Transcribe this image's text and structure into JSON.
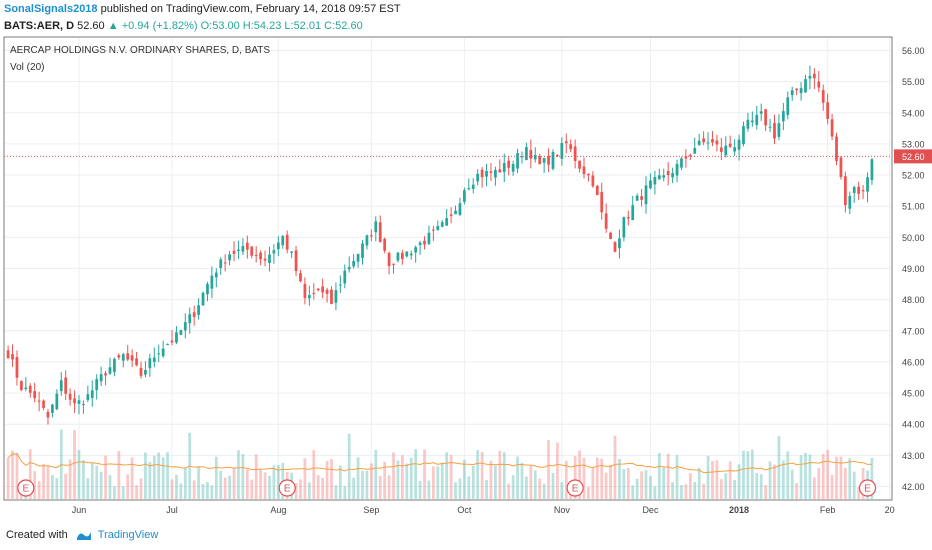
{
  "header": {
    "author": "SonalSignals2018",
    "published": "published on TradingView.com, February 14, 2018 09:57 EST",
    "symbol": "BATS:AER, D",
    "last": "52.60",
    "change": "+0.94 (+1.82%)",
    "o": "O:53.00",
    "h": "H:54.23",
    "l": "L:52.01",
    "c": "C:52.60"
  },
  "footer": {
    "created": "Created with",
    "brand": "TradingView"
  },
  "colors": {
    "up": "#26a69a",
    "down": "#ef5350",
    "ma": "#f5a040",
    "priceLine": "#e05050"
  },
  "chart_data": {
    "type": "candlestick",
    "title": "AERCAP HOLDINGS N.V. ORDINARY SHARES, D, BATS",
    "subtitle": "Vol (20)",
    "current_price": 52.6,
    "ylim": [
      41.6,
      56.4
    ],
    "y_ticks": [
      "42.00",
      "43.00",
      "44.00",
      "45.00",
      "46.00",
      "47.00",
      "48.00",
      "49.00",
      "50.00",
      "51.00",
      "52.00",
      "53.00",
      "54.00",
      "55.00",
      "56.00"
    ],
    "x_ticks": [
      "Jun",
      "Jul",
      "Aug",
      "Sep",
      "Oct",
      "Nov",
      "Dec",
      "2018",
      "Feb",
      "20"
    ],
    "x_tick_index": [
      16,
      37,
      61,
      82,
      103,
      125,
      145,
      165,
      185,
      199
    ],
    "earnings_markers": [
      "E",
      "E",
      "E",
      "E"
    ],
    "earnings_index": [
      4,
      63,
      128,
      194
    ],
    "grid": true,
    "anchors": [
      [
        0,
        46.3
      ],
      [
        3,
        45.2
      ],
      [
        6,
        44.9
      ],
      [
        9,
        44.2
      ],
      [
        12,
        45.3
      ],
      [
        15,
        44.6
      ],
      [
        18,
        44.9
      ],
      [
        22,
        45.7
      ],
      [
        26,
        46.2
      ],
      [
        30,
        45.6
      ],
      [
        34,
        46.4
      ],
      [
        38,
        46.8
      ],
      [
        42,
        47.6
      ],
      [
        46,
        48.8
      ],
      [
        50,
        49.5
      ],
      [
        54,
        49.6
      ],
      [
        58,
        49.3
      ],
      [
        62,
        50.0
      ],
      [
        64,
        49.4
      ],
      [
        67,
        48.0
      ],
      [
        70,
        48.3
      ],
      [
        73,
        47.9
      ],
      [
        76,
        48.9
      ],
      [
        80,
        49.7
      ],
      [
        83,
        50.4
      ],
      [
        86,
        49.2
      ],
      [
        89,
        49.4
      ],
      [
        92,
        49.7
      ],
      [
        96,
        50.1
      ],
      [
        100,
        50.6
      ],
      [
        103,
        51.6
      ],
      [
        106,
        52.0
      ],
      [
        110,
        52.1
      ],
      [
        114,
        52.4
      ],
      [
        117,
        52.9
      ],
      [
        120,
        52.3
      ],
      [
        123,
        52.6
      ],
      [
        126,
        53.0
      ],
      [
        129,
        52.3
      ],
      [
        132,
        51.8
      ],
      [
        135,
        50.2
      ],
      [
        137,
        49.7
      ],
      [
        139,
        50.5
      ],
      [
        142,
        51.2
      ],
      [
        145,
        51.7
      ],
      [
        148,
        51.9
      ],
      [
        152,
        52.4
      ],
      [
        155,
        52.9
      ],
      [
        158,
        53.1
      ],
      [
        161,
        52.8
      ],
      [
        164,
        53.0
      ],
      [
        167,
        53.6
      ],
      [
        170,
        53.9
      ],
      [
        173,
        53.3
      ],
      [
        176,
        54.4
      ],
      [
        179,
        54.9
      ],
      [
        181,
        55.3
      ],
      [
        183,
        54.8
      ],
      [
        185,
        53.8
      ],
      [
        187,
        52.5
      ],
      [
        189,
        51.2
      ],
      [
        191,
        51.6
      ],
      [
        193,
        51.4
      ],
      [
        195,
        52.6
      ]
    ],
    "n_candles": 196
  }
}
